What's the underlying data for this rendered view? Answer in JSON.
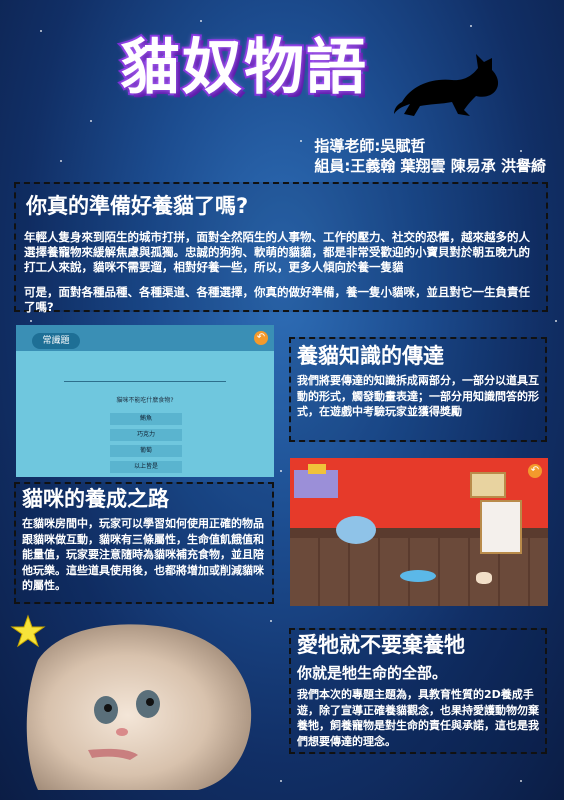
{
  "header": {
    "title": "貓奴物語",
    "advisor": "指導老師:吳賦哲",
    "members": "組員:王義翰 葉翔雲 陳易承 洪譽綺"
  },
  "intro": {
    "heading": "你真的準備好養貓了嗎?",
    "para1": "年輕人隻身來到陌生的城市打拼，面對全然陌生的人事物、工作的壓力、社交的恐懼，越來越多的人選擇養寵物來緩解焦慮與孤獨。忠誠的狗狗、軟萌的貓貓，都是非常受歡迎的小寶貝對於朝五晚九的打工人來說，貓咪不需要遛，相對好養一些，所以，更多人傾向於養一隻貓",
    "para2": "可是，面對各種品種、各種渠道、各種選擇，你真的做好準備，養一隻小貓咪，並且對它一生負責任了嗎?"
  },
  "quiz_screen": {
    "tag": "常識題",
    "question": "貓咪不能吃什麼食物?",
    "options": [
      "巧克力",
      "大蒜",
      "葡萄",
      "以上皆是"
    ],
    "options_display": [
      "鮪魚",
      "巧克力",
      "葡萄",
      "以上皆是"
    ]
  },
  "knowledge": {
    "heading": "養貓知識的傳達",
    "text": "我們將要傳達的知識拆成兩部分，一部分以道具互動的形式，觸發動畫表達；一部分用知識問答的形式，在遊戲中考驗玩家並獲得獎勵"
  },
  "raising": {
    "heading": "貓咪的養成之路",
    "text": "在貓咪房間中，玩家可以學習如何使用正確的物品跟貓咪做互動，貓咪有三條屬性，生命值飢餓值和能量值，玩家要注意隨時為貓咪補充食物，並且陪他玩樂。這些道具使用後，也都將增加或削減貓咪的屬性。"
  },
  "dont_abandon": {
    "heading": "愛牠就不要棄養牠",
    "subheading": "你就是牠生命的全部。",
    "text": "我們本次的專題主題為，具教育性質的2D養成手遊，除了宣導正確養貓觀念，也果持愛護動物勿棄養牠，飼養寵物是對生命的責任與承諾，這也是我們想要傳達的理念。"
  },
  "colors": {
    "bg_dark": "#0b1d45",
    "title_stroke": "#7a2bd6",
    "room_wall": "#e63a2a",
    "quiz_bg": "#6fc7de"
  }
}
